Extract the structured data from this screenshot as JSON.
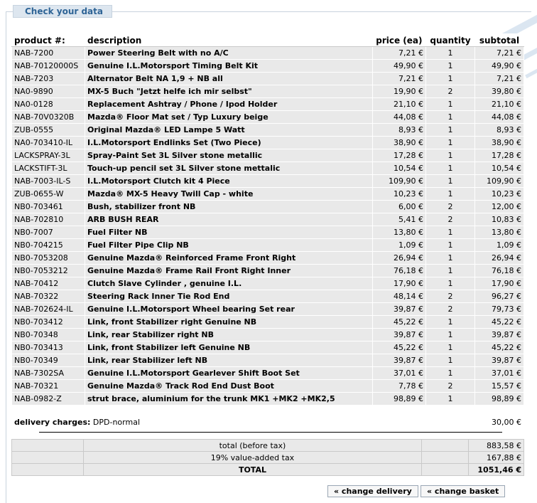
{
  "header": {
    "title": "Check your data"
  },
  "table": {
    "columns": [
      "product #:",
      "description",
      "price (ea)",
      "quantity",
      "subtotal"
    ],
    "rows": [
      {
        "pn": "NAB-7200",
        "desc": "Power Steering Belt with no A/C",
        "price": "7,21 €",
        "qty": "1",
        "sub": "7,21 €"
      },
      {
        "pn": "NAB-70120000S",
        "desc": "Genuine I.L.Motorsport Timing Belt Kit",
        "price": "49,90 €",
        "qty": "1",
        "sub": "49,90 €"
      },
      {
        "pn": "NAB-7203",
        "desc": "Alternator Belt NA 1,9 + NB all",
        "price": "7,21 €",
        "qty": "1",
        "sub": "7,21 €"
      },
      {
        "pn": "NA0-9890",
        "desc": "MX-5 Buch \"Jetzt helfe ich mir selbst\"",
        "price": "19,90 €",
        "qty": "2",
        "sub": "39,80 €"
      },
      {
        "pn": "NA0-0128",
        "desc": "Replacement Ashtray / Phone / Ipod Holder",
        "price": "21,10 €",
        "qty": "1",
        "sub": "21,10 €"
      },
      {
        "pn": "NAB-70V0320B",
        "desc": "Mazda® Floor Mat set / Typ Luxury beige",
        "price": "44,08 €",
        "qty": "1",
        "sub": "44,08 €"
      },
      {
        "pn": "ZUB-0555",
        "desc": "Original Mazda® LED Lampe 5 Watt",
        "price": "8,93 €",
        "qty": "1",
        "sub": "8,93 €"
      },
      {
        "pn": "NA0-703410-IL",
        "desc": "I.L.Motorsport Endlinks Set (Two Piece)",
        "price": "38,90 €",
        "qty": "1",
        "sub": "38,90 €"
      },
      {
        "pn": "LACKSPRAY-3L",
        "desc": "Spray-Paint Set 3L Silver stone metallic",
        "price": "17,28 €",
        "qty": "1",
        "sub": "17,28 €"
      },
      {
        "pn": "LACKSTIFT-3L",
        "desc": "Touch-up pencil set 3L Silver stone mettalic",
        "price": "10,54 €",
        "qty": "1",
        "sub": "10,54 €"
      },
      {
        "pn": "NAB-7003-IL-S",
        "desc": "I.L.Motorsport Clutch kit 4 Piece",
        "price": "109,90 €",
        "qty": "1",
        "sub": "109,90 €"
      },
      {
        "pn": "ZUB-0655-W",
        "desc": "Mazda® MX-5 Heavy Twill Cap - white",
        "price": "10,23 €",
        "qty": "1",
        "sub": "10,23 €"
      },
      {
        "pn": "NB0-703461",
        "desc": "Bush, stabilizer front NB",
        "price": "6,00 €",
        "qty": "2",
        "sub": "12,00 €"
      },
      {
        "pn": "NAB-702810",
        "desc": "ARB BUSH REAR",
        "price": "5,41 €",
        "qty": "2",
        "sub": "10,83 €"
      },
      {
        "pn": "NB0-7007",
        "desc": "Fuel Filter NB",
        "price": "13,80 €",
        "qty": "1",
        "sub": "13,80 €"
      },
      {
        "pn": "NB0-704215",
        "desc": "Fuel Filter Pipe Clip NB",
        "price": "1,09 €",
        "qty": "1",
        "sub": "1,09 €"
      },
      {
        "pn": "NB0-7053208",
        "desc": "Genuine Mazda® Reinforced Frame Front Right",
        "price": "26,94 €",
        "qty": "1",
        "sub": "26,94 €"
      },
      {
        "pn": "NB0-7053212",
        "desc": "Genuine Mazda® Frame Rail Front Right Inner",
        "price": "76,18 €",
        "qty": "1",
        "sub": "76,18 €"
      },
      {
        "pn": "NAB-70412",
        "desc": "Clutch Slave Cylinder , genuine I.L.",
        "price": "17,90 €",
        "qty": "1",
        "sub": "17,90 €"
      },
      {
        "pn": "NAB-70322",
        "desc": "Steering Rack Inner Tie Rod End",
        "price": "48,14 €",
        "qty": "2",
        "sub": "96,27 €"
      },
      {
        "pn": "NAB-702624-IL",
        "desc": "Genuine I.L.Motorsport Wheel bearing Set rear",
        "price": "39,87 €",
        "qty": "2",
        "sub": "79,73 €"
      },
      {
        "pn": "NB0-703412",
        "desc": "Link, front Stabilizer right Genuine NB",
        "price": "45,22 €",
        "qty": "1",
        "sub": "45,22 €"
      },
      {
        "pn": "NB0-70348",
        "desc": "Link, rear Stabilizer right NB",
        "price": "39,87 €",
        "qty": "1",
        "sub": "39,87 €"
      },
      {
        "pn": "NB0-703413",
        "desc": "Link, front Stabilizer left Genuine NB",
        "price": "45,22 €",
        "qty": "1",
        "sub": "45,22 €"
      },
      {
        "pn": "NB0-70349",
        "desc": "Link, rear Stabilizer left NB",
        "price": "39,87 €",
        "qty": "1",
        "sub": "39,87 €"
      },
      {
        "pn": "NAB-7302SA",
        "desc": "Genuine I.L.Motorsport Gearlever Shift Boot Set",
        "price": "37,01 €",
        "qty": "1",
        "sub": "37,01 €"
      },
      {
        "pn": "NAB-70321",
        "desc": "Genuine Mazda® Track Rod End Dust Boot",
        "price": "7,78 €",
        "qty": "2",
        "sub": "15,57 €"
      },
      {
        "pn": "NAB-0982-Z",
        "desc": "strut brace, aluminium for the trunk MK1 +MK2 +MK2,5",
        "price": "98,89 €",
        "qty": "1",
        "sub": "98,89 €"
      }
    ]
  },
  "delivery": {
    "label": "delivery charges:",
    "method": "DPD-normal",
    "amount": "30,00 €"
  },
  "totals": {
    "before_tax_label": "total (before tax)",
    "before_tax": "883,58 €",
    "vat_label": "19% value-added tax",
    "vat": "167,88 €",
    "total_label": "TOTAL",
    "total": "1051,46 €"
  },
  "buttons": {
    "change_delivery": "« change delivery",
    "change_basket": "« change basket"
  }
}
